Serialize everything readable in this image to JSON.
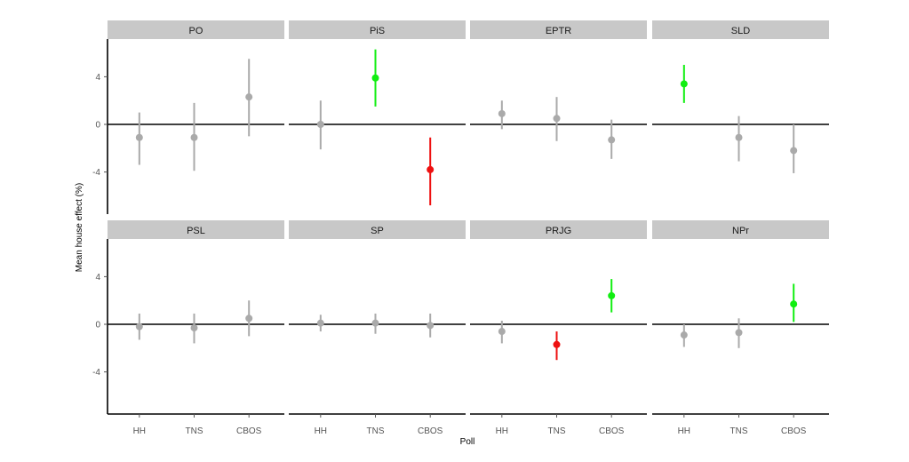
{
  "chart_data": {
    "type": "scatter",
    "subtype": "point-range faceted",
    "xlabel": "Poll",
    "ylabel": "Mean house effect (%)",
    "categories": [
      "HH",
      "TNS",
      "CBOS"
    ],
    "yticks": [
      4,
      0,
      -4
    ],
    "ytick_labels": [
      "4",
      "0",
      "-4"
    ],
    "ylim": [
      -7.5,
      7
    ],
    "reference_line": 0,
    "colors": {
      "neutral": "#aaaaaa",
      "positive": "#11ee11",
      "negative": "#ee1111",
      "strip_bg": "#c8c8c8"
    },
    "panels": [
      {
        "title": "PO",
        "points": [
          {
            "x": "HH",
            "y": -1.1,
            "lo": -3.4,
            "hi": 1.0,
            "color": "neutral"
          },
          {
            "x": "TNS",
            "y": -1.1,
            "lo": -3.9,
            "hi": 1.8,
            "color": "neutral"
          },
          {
            "x": "CBOS",
            "y": 2.3,
            "lo": -1.0,
            "hi": 5.5,
            "color": "neutral"
          }
        ]
      },
      {
        "title": "PiS",
        "points": [
          {
            "x": "HH",
            "y": 0.0,
            "lo": -2.1,
            "hi": 2.0,
            "color": "neutral"
          },
          {
            "x": "TNS",
            "y": 3.9,
            "lo": 1.5,
            "hi": 6.3,
            "color": "positive"
          },
          {
            "x": "CBOS",
            "y": -3.8,
            "lo": -6.8,
            "hi": -1.1,
            "color": "negative"
          }
        ]
      },
      {
        "title": "EPTR",
        "points": [
          {
            "x": "HH",
            "y": 0.9,
            "lo": -0.4,
            "hi": 2.0,
            "color": "neutral"
          },
          {
            "x": "TNS",
            "y": 0.5,
            "lo": -1.4,
            "hi": 2.3,
            "color": "neutral"
          },
          {
            "x": "CBOS",
            "y": -1.3,
            "lo": -2.9,
            "hi": 0.4,
            "color": "neutral"
          }
        ]
      },
      {
        "title": "SLD",
        "points": [
          {
            "x": "HH",
            "y": 3.4,
            "lo": 1.8,
            "hi": 5.0,
            "color": "positive"
          },
          {
            "x": "TNS",
            "y": -1.1,
            "lo": -3.1,
            "hi": 0.7,
            "color": "neutral"
          },
          {
            "x": "CBOS",
            "y": -2.2,
            "lo": -4.1,
            "hi": 0.0,
            "color": "neutral"
          }
        ]
      },
      {
        "title": "PSL",
        "points": [
          {
            "x": "HH",
            "y": -0.2,
            "lo": -1.3,
            "hi": 0.9,
            "color": "neutral"
          },
          {
            "x": "TNS",
            "y": -0.3,
            "lo": -1.6,
            "hi": 0.9,
            "color": "neutral"
          },
          {
            "x": "CBOS",
            "y": 0.5,
            "lo": -1.0,
            "hi": 2.0,
            "color": "neutral"
          }
        ]
      },
      {
        "title": "SP",
        "points": [
          {
            "x": "HH",
            "y": 0.1,
            "lo": -0.6,
            "hi": 0.8,
            "color": "neutral"
          },
          {
            "x": "TNS",
            "y": 0.1,
            "lo": -0.8,
            "hi": 0.9,
            "color": "neutral"
          },
          {
            "x": "CBOS",
            "y": -0.1,
            "lo": -1.1,
            "hi": 0.9,
            "color": "neutral"
          }
        ]
      },
      {
        "title": "PRJG",
        "points": [
          {
            "x": "HH",
            "y": -0.6,
            "lo": -1.6,
            "hi": 0.3,
            "color": "neutral"
          },
          {
            "x": "TNS",
            "y": -1.7,
            "lo": -3.0,
            "hi": -0.6,
            "color": "negative"
          },
          {
            "x": "CBOS",
            "y": 2.4,
            "lo": 1.0,
            "hi": 3.8,
            "color": "positive"
          }
        ]
      },
      {
        "title": "NPr",
        "points": [
          {
            "x": "HH",
            "y": -0.9,
            "lo": -1.9,
            "hi": 0.0,
            "color": "neutral"
          },
          {
            "x": "TNS",
            "y": -0.7,
            "lo": -2.0,
            "hi": 0.5,
            "color": "neutral"
          },
          {
            "x": "CBOS",
            "y": 1.7,
            "lo": 0.2,
            "hi": 3.4,
            "color": "positive"
          }
        ]
      }
    ]
  }
}
